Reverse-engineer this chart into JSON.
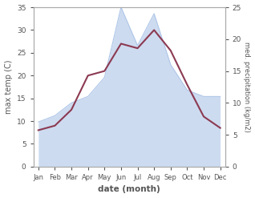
{
  "months": [
    "Jan",
    "Feb",
    "Mar",
    "Apr",
    "May",
    "Jun",
    "Jul",
    "Aug",
    "Sep",
    "Oct",
    "Nov",
    "Dec"
  ],
  "month_indices": [
    0,
    1,
    2,
    3,
    4,
    5,
    6,
    7,
    8,
    9,
    10,
    11
  ],
  "precipitation": [
    7.0,
    8.0,
    10.0,
    11.0,
    14.0,
    25.0,
    19.0,
    24.0,
    16.0,
    12.0,
    11.0,
    11.0
  ],
  "temperature": [
    8.0,
    9.0,
    12.5,
    20.0,
    21.0,
    27.0,
    26.0,
    30.0,
    25.5,
    18.0,
    11.0,
    8.5
  ],
  "temp_ylim": [
    0,
    35
  ],
  "precip_ylim": [
    0,
    25
  ],
  "precip_color": "#aec6e8",
  "precip_fill_color": "#c5d5ee",
  "temp_color": "#8b3a52",
  "fill_alpha": 0.85,
  "ylabel_left": "max temp (C)",
  "ylabel_right": "med. precipitation (kg/m2)",
  "xlabel": "date (month)",
  "bg_color": "#ffffff",
  "tick_color": "#555555",
  "spine_color": "#aaaaaa"
}
